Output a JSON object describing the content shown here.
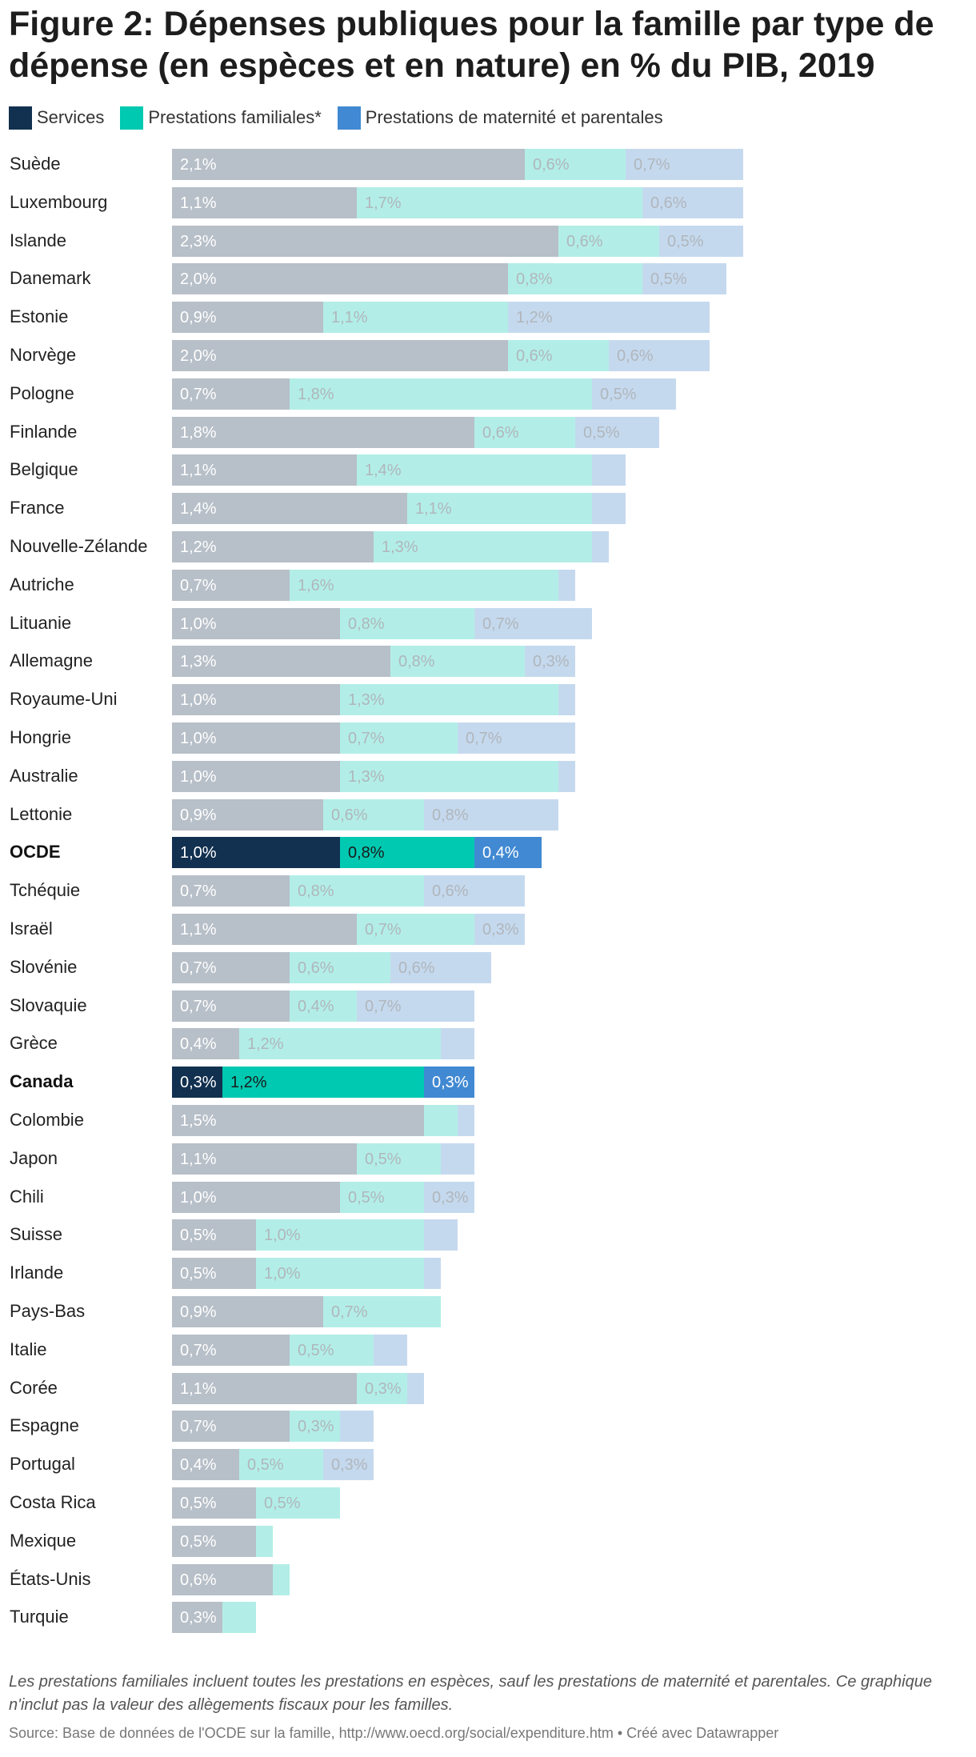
{
  "title": "Figure 2: Dépenses publiques pour la famille par type de dépense (en espèces et en nature) en % du PIB, 2019",
  "note": "Les prestations familiales incluent toutes les prestations en espèces, sauf les prestations de maternité et parentales. Ce graphique n'inclut pas la valeur des allègements fiscaux pour les familles.",
  "source": "Source: Base de données de l'OCDE sur la famille, http://www.oecd.org/social/expenditure.htm • Créé avec Datawrapper",
  "colors": {
    "services": "#12304f",
    "prestations_familiales": "#00c9b1",
    "maternite_parentales": "#4189d2",
    "services_muted": "#b7bfc8",
    "prestations_familiales_muted": "#b2eee7",
    "maternite_parentales_muted": "#c5d9ee",
    "label_on_dark": "#ffffff",
    "label_on_teal": "#1a1a1a",
    "label_muted": "#b0b6bc"
  },
  "chart_data": {
    "type": "bar",
    "orientation": "horizontal",
    "stacked": true,
    "title": "Figure 2: Dépenses publiques pour la famille par type de dépense (en espèces et en nature) en % du PIB, 2019",
    "unit": "% du PIB",
    "xlim": [
      0,
      4.0
    ],
    "legend": [
      {
        "key": "services",
        "label": "Services"
      },
      {
        "key": "prestations_familiales",
        "label": "Prestations familiales*"
      },
      {
        "key": "maternite_parentales",
        "label": "Prestations de maternité et parentales"
      }
    ],
    "highlighted": [
      "OCDE",
      "Canada"
    ],
    "rows": [
      {
        "country": "Suède",
        "values": [
          2.1,
          0.6,
          0.7
        ],
        "labels": [
          "2,1%",
          "0,6%",
          "0,7%"
        ]
      },
      {
        "country": "Luxembourg",
        "values": [
          1.1,
          1.7,
          0.6
        ],
        "labels": [
          "1,1%",
          "1,7%",
          "0,6%"
        ]
      },
      {
        "country": "Islande",
        "values": [
          2.3,
          0.6,
          0.5
        ],
        "labels": [
          "2,3%",
          "0,6%",
          "0,5%"
        ]
      },
      {
        "country": "Danemark",
        "values": [
          2.0,
          0.8,
          0.5
        ],
        "labels": [
          "2,0%",
          "0,8%",
          "0,5%"
        ]
      },
      {
        "country": "Estonie",
        "values": [
          0.9,
          1.1,
          1.2
        ],
        "labels": [
          "0,9%",
          "1,1%",
          "1,2%"
        ]
      },
      {
        "country": "Norvège",
        "values": [
          2.0,
          0.6,
          0.6
        ],
        "labels": [
          "2,0%",
          "0,6%",
          "0,6%"
        ]
      },
      {
        "country": "Pologne",
        "values": [
          0.7,
          1.8,
          0.5
        ],
        "labels": [
          "0,7%",
          "1,8%",
          "0,5%"
        ]
      },
      {
        "country": "Finlande",
        "values": [
          1.8,
          0.6,
          0.5
        ],
        "labels": [
          "1,8%",
          "0,6%",
          "0,5%"
        ]
      },
      {
        "country": "Belgique",
        "values": [
          1.1,
          1.4,
          0.2
        ],
        "labels": [
          "1,1%",
          "1,4%",
          ""
        ]
      },
      {
        "country": "France",
        "values": [
          1.4,
          1.1,
          0.2
        ],
        "labels": [
          "1,4%",
          "1,1%",
          ""
        ]
      },
      {
        "country": "Nouvelle-Zélande",
        "values": [
          1.2,
          1.3,
          0.1
        ],
        "labels": [
          "1,2%",
          "1,3%",
          ""
        ]
      },
      {
        "country": "Autriche",
        "values": [
          0.7,
          1.6,
          0.1
        ],
        "labels": [
          "0,7%",
          "1,6%",
          ""
        ]
      },
      {
        "country": "Lituanie",
        "values": [
          1.0,
          0.8,
          0.7
        ],
        "labels": [
          "1,0%",
          "0,8%",
          "0,7%"
        ]
      },
      {
        "country": "Allemagne",
        "values": [
          1.3,
          0.8,
          0.3
        ],
        "labels": [
          "1,3%",
          "0,8%",
          "0,3%"
        ]
      },
      {
        "country": "Royaume-Uni",
        "values": [
          1.0,
          1.3,
          0.1
        ],
        "labels": [
          "1,0%",
          "1,3%",
          ""
        ]
      },
      {
        "country": "Hongrie",
        "values": [
          1.0,
          0.7,
          0.7
        ],
        "labels": [
          "1,0%",
          "0,7%",
          "0,7%"
        ]
      },
      {
        "country": "Australie",
        "values": [
          1.0,
          1.3,
          0.1
        ],
        "labels": [
          "1,0%",
          "1,3%",
          ""
        ]
      },
      {
        "country": "Lettonie",
        "values": [
          0.9,
          0.6,
          0.8
        ],
        "labels": [
          "0,9%",
          "0,6%",
          "0,8%"
        ]
      },
      {
        "country": "OCDE",
        "values": [
          1.0,
          0.8,
          0.4
        ],
        "labels": [
          "1,0%",
          "0,8%",
          "0,4%"
        ],
        "highlight": true
      },
      {
        "country": "Tchéquie",
        "values": [
          0.7,
          0.8,
          0.6
        ],
        "labels": [
          "0,7%",
          "0,8%",
          "0,6%"
        ]
      },
      {
        "country": "Israël",
        "values": [
          1.1,
          0.7,
          0.3
        ],
        "labels": [
          "1,1%",
          "0,7%",
          "0,3%"
        ]
      },
      {
        "country": "Slovénie",
        "values": [
          0.7,
          0.6,
          0.6
        ],
        "labels": [
          "0,7%",
          "0,6%",
          "0,6%"
        ]
      },
      {
        "country": "Slovaquie",
        "values": [
          0.7,
          0.4,
          0.7
        ],
        "labels": [
          "0,7%",
          "0,4%",
          "0,7%"
        ]
      },
      {
        "country": "Grèce",
        "values": [
          0.4,
          1.2,
          0.2
        ],
        "labels": [
          "0,4%",
          "1,2%",
          ""
        ]
      },
      {
        "country": "Canada",
        "values": [
          0.3,
          1.2,
          0.3
        ],
        "labels": [
          "0,3%",
          "1,2%",
          "0,3%"
        ],
        "highlight": true
      },
      {
        "country": "Colombie",
        "values": [
          1.5,
          0.2,
          0.1
        ],
        "labels": [
          "1,5%",
          "",
          ""
        ]
      },
      {
        "country": "Japon",
        "values": [
          1.1,
          0.5,
          0.2
        ],
        "labels": [
          "1,1%",
          "0,5%",
          ""
        ]
      },
      {
        "country": "Chili",
        "values": [
          1.0,
          0.5,
          0.3
        ],
        "labels": [
          "1,0%",
          "0,5%",
          "0,3%"
        ]
      },
      {
        "country": "Suisse",
        "values": [
          0.5,
          1.0,
          0.2
        ],
        "labels": [
          "0,5%",
          "1,0%",
          ""
        ]
      },
      {
        "country": "Irlande",
        "values": [
          0.5,
          1.0,
          0.1
        ],
        "labels": [
          "0,5%",
          "1,0%",
          ""
        ]
      },
      {
        "country": "Pays-Bas",
        "values": [
          0.9,
          0.7,
          0.0
        ],
        "labels": [
          "0,9%",
          "0,7%",
          ""
        ]
      },
      {
        "country": "Italie",
        "values": [
          0.7,
          0.5,
          0.2
        ],
        "labels": [
          "0,7%",
          "0,5%",
          ""
        ]
      },
      {
        "country": "Corée",
        "values": [
          1.1,
          0.3,
          0.1
        ],
        "labels": [
          "1,1%",
          "0,3%",
          ""
        ]
      },
      {
        "country": "Espagne",
        "values": [
          0.7,
          0.3,
          0.2
        ],
        "labels": [
          "0,7%",
          "0,3%",
          ""
        ]
      },
      {
        "country": "Portugal",
        "values": [
          0.4,
          0.5,
          0.3
        ],
        "labels": [
          "0,4%",
          "0,5%",
          "0,3%"
        ]
      },
      {
        "country": "Costa Rica",
        "values": [
          0.5,
          0.5,
          0.0
        ],
        "labels": [
          "0,5%",
          "0,5%",
          ""
        ]
      },
      {
        "country": "Mexique",
        "values": [
          0.5,
          0.1,
          0.0
        ],
        "labels": [
          "0,5%",
          "",
          ""
        ]
      },
      {
        "country": "États-Unis",
        "values": [
          0.6,
          0.1,
          0.0
        ],
        "labels": [
          "0,6%",
          "",
          ""
        ]
      },
      {
        "country": "Turquie",
        "values": [
          0.3,
          0.2,
          0.0
        ],
        "labels": [
          "0,3%",
          "",
          ""
        ]
      }
    ]
  }
}
